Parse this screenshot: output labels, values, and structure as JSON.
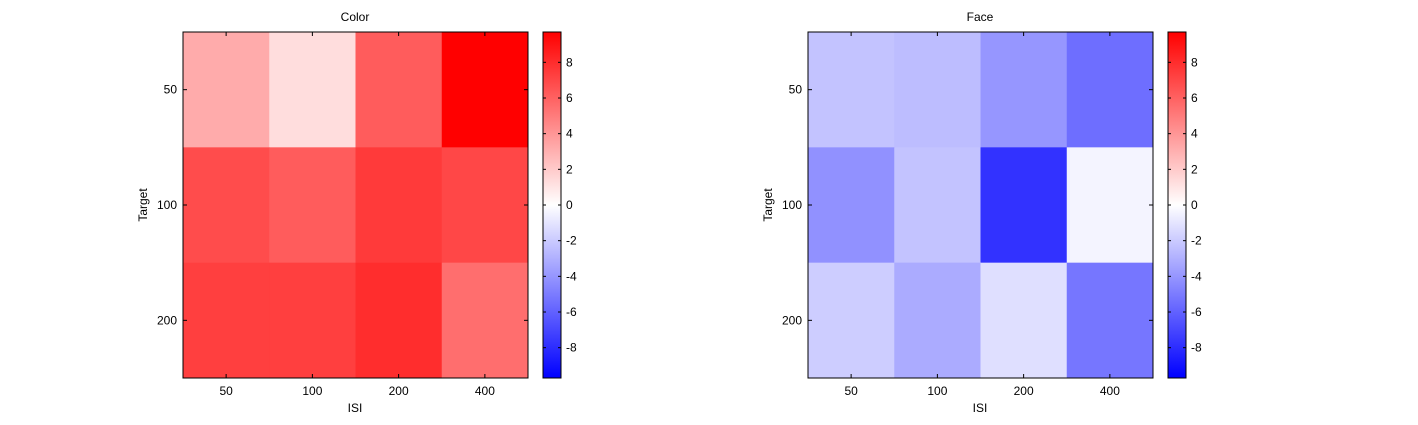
{
  "chart_data": [
    {
      "type": "heatmap",
      "title": "Color",
      "xlabel": "ISI",
      "ylabel": "Target",
      "x_categories": [
        "50",
        "100",
        "200",
        "400"
      ],
      "y_categories": [
        "50",
        "100",
        "200"
      ],
      "values": [
        [
          3.2,
          1.3,
          6.2,
          9.7
        ],
        [
          6.8,
          6.2,
          7.5,
          7.0
        ],
        [
          7.3,
          7.3,
          8.0,
          5.5
        ]
      ],
      "colorbar": {
        "range": [
          -9.7,
          9.7
        ],
        "ticks": [
          -8,
          -6,
          -4,
          -2,
          0,
          2,
          4,
          6,
          8
        ],
        "tick_labels": [
          "-8",
          "-6",
          "-4",
          "-2",
          "0",
          "2",
          "4",
          "6",
          "8"
        ],
        "low_color": "#0000ff",
        "mid_color": "#ffffff",
        "high_color": "#ff0000"
      }
    },
    {
      "type": "heatmap",
      "title": "Face",
      "xlabel": "ISI",
      "ylabel": "Target",
      "x_categories": [
        "50",
        "100",
        "200",
        "400"
      ],
      "y_categories": [
        "50",
        "100",
        "200"
      ],
      "values": [
        [
          -2.3,
          -2.5,
          -4.0,
          -5.5
        ],
        [
          -4.2,
          -2.3,
          -7.8,
          -0.4
        ],
        [
          -1.9,
          -3.2,
          -1.2,
          -5.2
        ]
      ],
      "colorbar": {
        "range": [
          -9.7,
          9.7
        ],
        "ticks": [
          -8,
          -6,
          -4,
          -2,
          0,
          2,
          4,
          6,
          8
        ],
        "tick_labels": [
          "-8",
          "-6",
          "-4",
          "-2",
          "0",
          "2",
          "4",
          "6",
          "8"
        ],
        "low_color": "#0000ff",
        "mid_color": "#ffffff",
        "high_color": "#ff0000"
      }
    }
  ]
}
